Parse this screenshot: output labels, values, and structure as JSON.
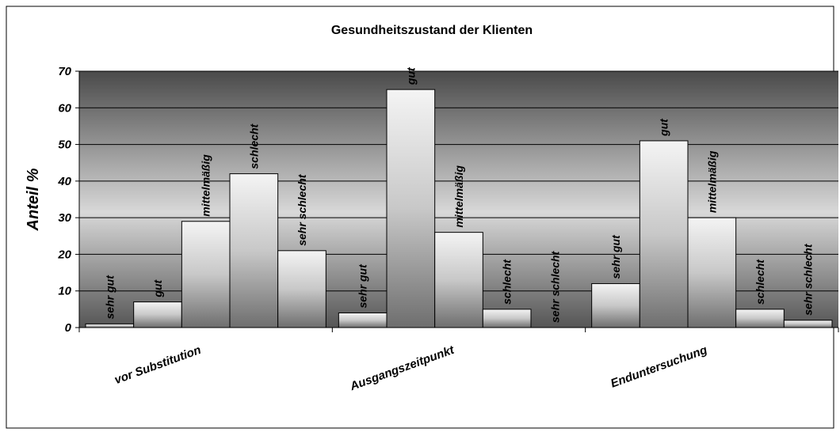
{
  "chart_data": {
    "type": "bar",
    "title": "Gesundheitszustand der Klienten",
    "ylabel": "Anteil %",
    "categories": [
      "vor Substitution",
      "Ausgangszeitpunkt",
      "Enduntersuchung"
    ],
    "series": [
      {
        "name": "sehr gut",
        "values": [
          1,
          4,
          12
        ]
      },
      {
        "name": "gut",
        "values": [
          7,
          65,
          51
        ]
      },
      {
        "name": "mittelmäßig",
        "values": [
          29,
          26,
          30
        ]
      },
      {
        "name": "schlecht",
        "values": [
          42,
          5,
          5
        ]
      },
      {
        "name": "sehr schlecht",
        "values": [
          21,
          0,
          2
        ]
      }
    ],
    "ylim": [
      0,
      70
    ],
    "yticks": [
      0,
      10,
      20,
      30,
      40,
      50,
      60,
      70
    ],
    "grid": true
  }
}
